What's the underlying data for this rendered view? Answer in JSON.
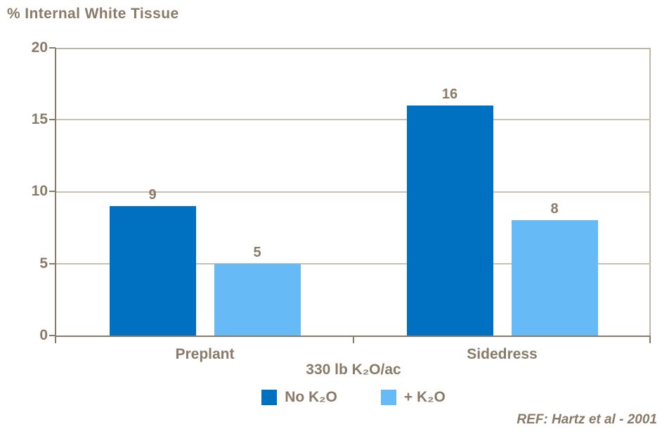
{
  "chart_data": {
    "type": "bar",
    "title": "% Internal White Tissue",
    "categories": [
      "Preplant",
      "Sidedress"
    ],
    "series": [
      {
        "name": "No K₂O",
        "color": "#0070C0",
        "values": [
          9,
          16
        ]
      },
      {
        "name": "+ K₂O",
        "color": "#66BBF7",
        "values": [
          5,
          8
        ]
      }
    ],
    "xlabel": "330 lb K₂O/ac",
    "ylabel": "% Internal White Tissue",
    "ylim": [
      0,
      20
    ],
    "yticks": [
      0,
      5,
      10,
      15,
      20
    ],
    "grid": true,
    "legend_position": "bottom-center",
    "annotation": "REF: Hartz et al - 2001",
    "colors": {
      "text": "#8A7A68",
      "axis": "#8A7A68",
      "gridline": "#C8C2B6",
      "plot_border": "#BEB6AA",
      "background": "#FFFFFF"
    }
  }
}
